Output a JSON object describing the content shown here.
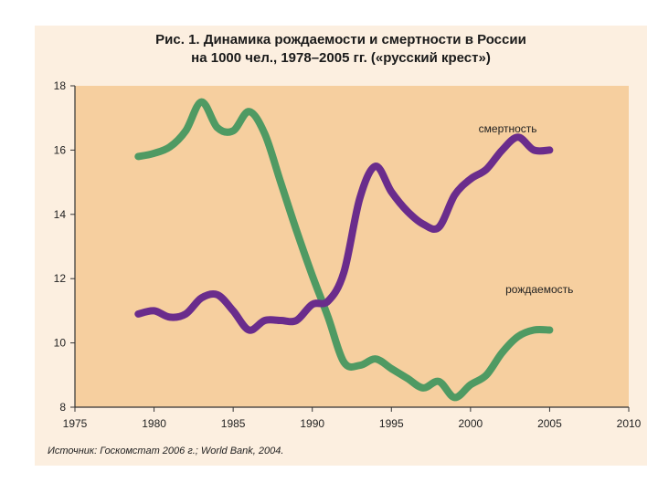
{
  "title_line1": "Рис. 1. Динамика рождаемости и смертности  в России",
  "title_line2": "на 1000 чел., 1978–2005 гг. («русский крест»)",
  "source": "Источник: Госкомстат 2006 г.; World Bank, 2004.",
  "colors": {
    "plot_bg": "#f6cf9f",
    "figure_bg": "#fcefe0",
    "mortality": "#6a2c8c",
    "birth": "#4f9a63"
  },
  "chart_data": {
    "type": "line",
    "title": "Рис. 1. Динамика рождаемости и смертности  в России на 1000 чел., 1978–2005 гг. («русский крест»)",
    "xlabel": "",
    "ylabel": "",
    "xlim": [
      1975,
      2010
    ],
    "ylim": [
      8,
      18
    ],
    "x_ticks": [
      "1975",
      "1980",
      "1985",
      "1990",
      "1995",
      "2000",
      "2005",
      "2010"
    ],
    "y_ticks": [
      "8",
      "10",
      "12",
      "14",
      "16",
      "18"
    ],
    "grid": false,
    "series": [
      {
        "name": "смертность",
        "color_key": "mortality",
        "x": [
          1979,
          1980,
          1981,
          1982,
          1983,
          1984,
          1985,
          1986,
          1987,
          1988,
          1989,
          1990,
          1991,
          1992,
          1993,
          1994,
          1995,
          1996,
          1997,
          1998,
          1999,
          2000,
          2001,
          2002,
          2003,
          2004,
          2005
        ],
        "values": [
          10.9,
          11.0,
          10.8,
          10.9,
          11.4,
          11.5,
          11.0,
          10.4,
          10.7,
          10.7,
          10.7,
          11.2,
          11.3,
          12.2,
          14.5,
          15.5,
          14.7,
          14.1,
          13.7,
          13.6,
          14.6,
          15.1,
          15.4,
          16.0,
          16.4,
          16.0,
          16.0
        ]
      },
      {
        "name": "рождаемость",
        "color_key": "birth",
        "x": [
          1979,
          1980,
          1981,
          1982,
          1983,
          1984,
          1985,
          1986,
          1987,
          1988,
          1989,
          1990,
          1991,
          1992,
          1993,
          1994,
          1995,
          1996,
          1997,
          1998,
          1999,
          2000,
          2001,
          2002,
          2003,
          2004,
          2005
        ],
        "values": [
          15.8,
          15.9,
          16.1,
          16.6,
          17.5,
          16.7,
          16.6,
          17.2,
          16.5,
          15.0,
          13.5,
          12.1,
          10.8,
          9.4,
          9.3,
          9.5,
          9.2,
          8.9,
          8.6,
          8.8,
          8.3,
          8.7,
          9.0,
          9.7,
          10.2,
          10.4,
          10.4
        ]
      }
    ]
  }
}
